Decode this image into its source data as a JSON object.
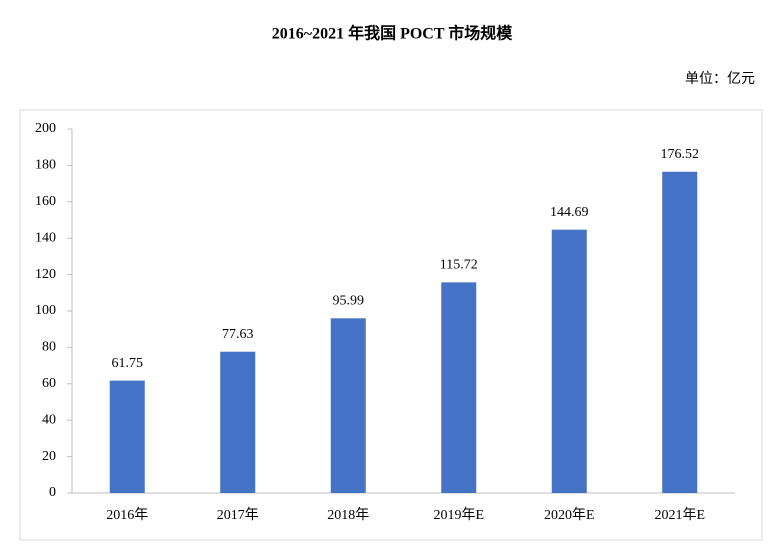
{
  "chart_data": {
    "type": "bar",
    "title": "2016~2021 年我国 POCT 市场规模",
    "unit_label": "单位：亿元",
    "categories": [
      "2016年",
      "2017年",
      "2018年",
      "2019年E",
      "2020年E",
      "2021年E"
    ],
    "values": [
      61.75,
      77.63,
      95.99,
      115.72,
      144.69,
      176.52
    ],
    "color": "#4472c4",
    "ylim": [
      0,
      200
    ],
    "yticks": [
      0,
      20,
      40,
      60,
      80,
      100,
      120,
      140,
      160,
      180,
      200
    ],
    "grid": false
  }
}
